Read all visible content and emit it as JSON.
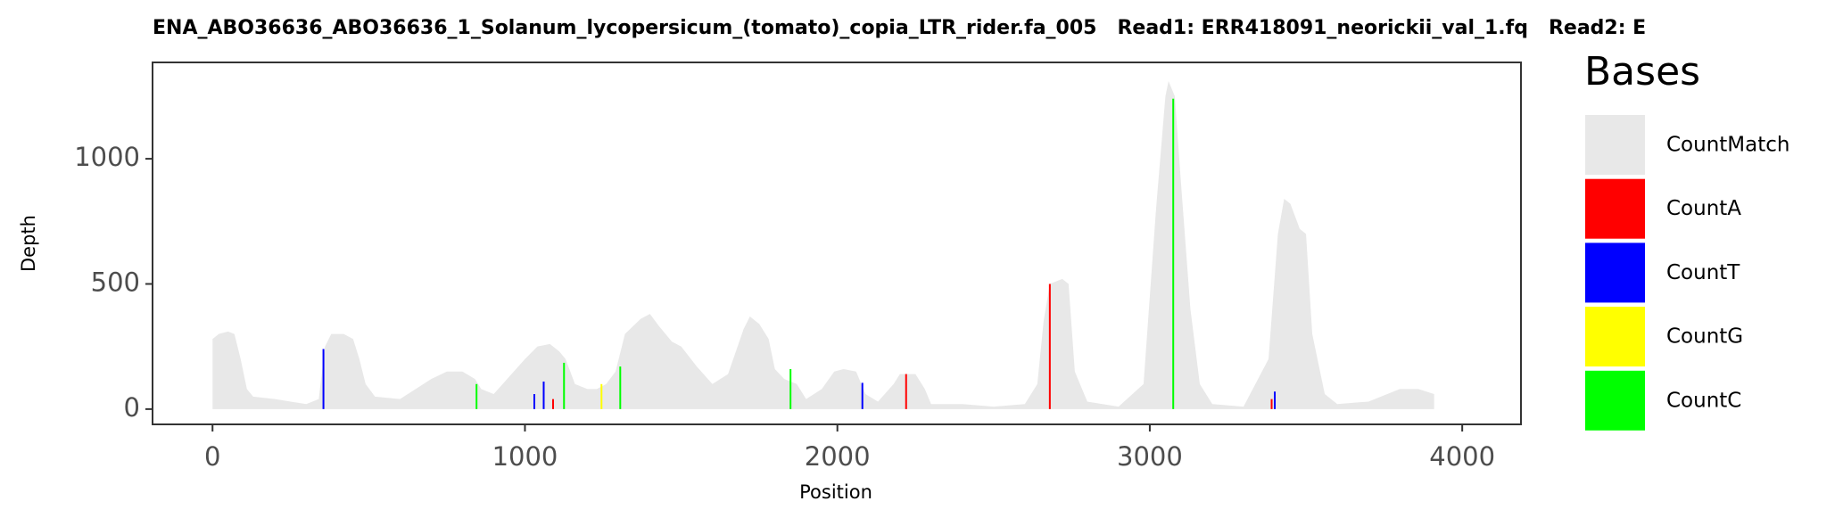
{
  "chart_data": {
    "type": "area",
    "title": "ENA_ABO36636_ABO36636_1_Solanum_lycopersicum_(tomato)_copia_LTR_rider.fa_005   Read1: ERR418091_neorickii_val_1.fq   Read2: E",
    "x_label": "Position",
    "y_label": "Depth",
    "legend_title": "Bases",
    "xlim": [
      -192,
      4188
    ],
    "ylim": [
      -61,
      1385
    ],
    "xticks": [
      0,
      1000,
      2000,
      3000,
      4000
    ],
    "yticks": [
      0,
      500,
      1000
    ],
    "series": [
      {
        "name": "CountMatch",
        "color": "#e8e8e8",
        "type": "area",
        "x": [
          0,
          20,
          50,
          70,
          90,
          110,
          130,
          200,
          250,
          300,
          340,
          360,
          380,
          420,
          450,
          470,
          490,
          520,
          600,
          650,
          700,
          750,
          800,
          840,
          860,
          900,
          950,
          1000,
          1040,
          1080,
          1110,
          1130,
          1160,
          1200,
          1230,
          1260,
          1290,
          1320,
          1370,
          1400,
          1430,
          1470,
          1500,
          1550,
          1600,
          1650,
          1700,
          1720,
          1750,
          1780,
          1800,
          1830,
          1870,
          1900,
          1950,
          1990,
          2020,
          2060,
          2090,
          2130,
          2180,
          2200,
          2250,
          2280,
          2300,
          2400,
          2500,
          2600,
          2640,
          2660,
          2680,
          2700,
          2720,
          2740,
          2760,
          2800,
          2900,
          2980,
          3020,
          3050,
          3060,
          3080,
          3100,
          3130,
          3160,
          3200,
          3300,
          3380,
          3410,
          3430,
          3450,
          3480,
          3500,
          3520,
          3560,
          3600,
          3700,
          3760,
          3800,
          3860,
          3910
        ],
        "values": [
          280,
          300,
          310,
          300,
          200,
          80,
          50,
          40,
          30,
          20,
          40,
          250,
          300,
          300,
          280,
          200,
          100,
          50,
          40,
          80,
          120,
          150,
          150,
          120,
          80,
          60,
          130,
          200,
          250,
          260,
          230,
          200,
          100,
          80,
          80,
          100,
          150,
          300,
          360,
          380,
          330,
          270,
          250,
          170,
          100,
          140,
          320,
          370,
          340,
          280,
          160,
          120,
          100,
          40,
          80,
          150,
          160,
          150,
          60,
          30,
          100,
          140,
          140,
          80,
          20,
          20,
          10,
          20,
          100,
          350,
          500,
          510,
          520,
          500,
          150,
          30,
          10,
          100,
          800,
          1250,
          1310,
          1250,
          900,
          400,
          100,
          20,
          10,
          200,
          700,
          840,
          820,
          720,
          700,
          300,
          60,
          20,
          30,
          60,
          80,
          80,
          60
        ]
      },
      {
        "name": "CountA",
        "color": "#ff0000",
        "type": "bar",
        "x": [
          2680,
          2220,
          1090,
          3390
        ],
        "values": [
          500,
          140,
          40,
          40
        ]
      },
      {
        "name": "CountT",
        "color": "#0000ff",
        "type": "bar",
        "x": [
          355,
          1060,
          2080,
          1030,
          3400
        ],
        "values": [
          240,
          110,
          105,
          60,
          70
        ]
      },
      {
        "name": "CountG",
        "color": "#ffff00",
        "type": "bar",
        "x": [
          1245
        ],
        "values": [
          100
        ]
      },
      {
        "name": "CountC",
        "color": "#00ff00",
        "type": "bar",
        "x": [
          3075,
          1125,
          1305,
          1850,
          845
        ],
        "values": [
          1240,
          185,
          170,
          160,
          100
        ]
      }
    ]
  }
}
